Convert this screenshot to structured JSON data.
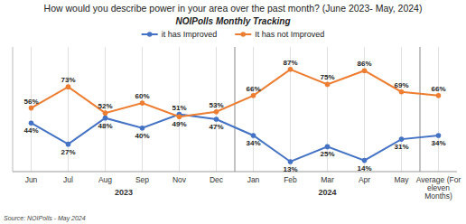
{
  "chart_data": {
    "type": "line",
    "title": "How would you describe power in your area over the past month? (June 2023- May, 2024)",
    "subtitle": "NOIPolls Monthly Tracking",
    "categories": [
      "Jun",
      "Jul",
      "Aug",
      "Sep",
      "Nov",
      "Dec",
      "Jan",
      "Feb",
      "Mar",
      "Apr",
      "May",
      "Average (For\neleven\nMonths)"
    ],
    "series": [
      {
        "name": "it has Improved",
        "color": "#4472c4",
        "marker": "circle",
        "line_style": "solid",
        "values": [
          44,
          27,
          48,
          40,
          51,
          47,
          34,
          13,
          25,
          14,
          31,
          34
        ],
        "value_labels": [
          "44%",
          "27%",
          "48%",
          "40%",
          "51%",
          "47%",
          "34%",
          "13%",
          "25%",
          "14%",
          "31%",
          "34%"
        ]
      },
      {
        "name": "It has not Improved",
        "color": "#ed7d31",
        "marker": "circle",
        "line_style": "solid",
        "values": [
          56,
          73,
          52,
          60,
          49,
          53,
          66,
          87,
          75,
          86,
          69,
          66
        ],
        "value_labels": [
          "56%",
          "73%",
          "52%",
          "60%",
          "49%",
          "53%",
          "66%",
          "87%",
          "75%",
          "86%",
          "69%",
          "66%"
        ]
      }
    ],
    "ylim": [
      5,
      105
    ],
    "yticks": [],
    "tick_labels": "x",
    "grid": true,
    "legend": "top",
    "data_labels": true,
    "annotations": [
      {
        "text": "2023",
        "from": "Jun",
        "to": "Dec"
      },
      {
        "text": "2024",
        "from": "Jan",
        "to": "May"
      }
    ],
    "source": "Source: NOIPolls - May 2024"
  }
}
